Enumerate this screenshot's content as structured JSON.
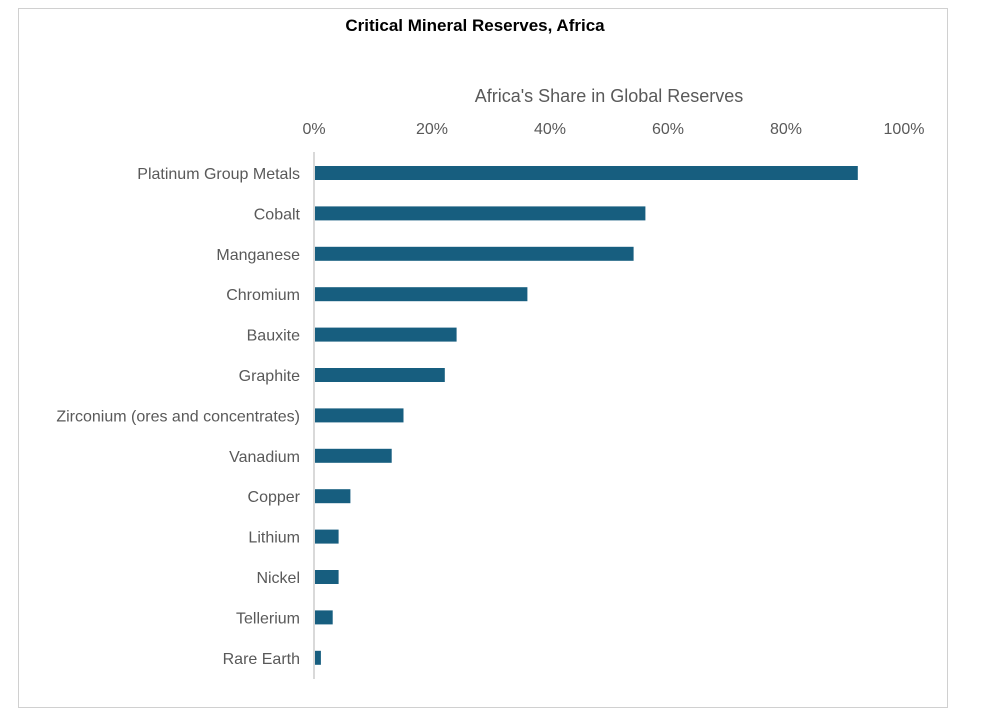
{
  "chart_data": {
    "type": "bar",
    "orientation": "horizontal",
    "title": "Critical Mineral Reserves, Africa",
    "xlabel": "Africa's Share in Global Reserves",
    "ylabel": "",
    "xlim": [
      0,
      100
    ],
    "x_ticks": [
      "0%",
      "20%",
      "40%",
      "60%",
      "80%",
      "100%"
    ],
    "categories": [
      "Platinum Group Metals",
      "Cobalt",
      "Manganese",
      "Chromium",
      "Bauxite",
      "Graphite",
      "Zirconium (ores and concentrates)",
      "Vanadium",
      "Copper",
      "Lithium",
      "Nickel",
      "Tellerium",
      "Rare Earth"
    ],
    "values": [
      92,
      56,
      54,
      36,
      24,
      22,
      15,
      13,
      6,
      4,
      4,
      3,
      1
    ],
    "unit": "%",
    "grid": false,
    "legend": "none",
    "bar_color": "#175e7f"
  }
}
